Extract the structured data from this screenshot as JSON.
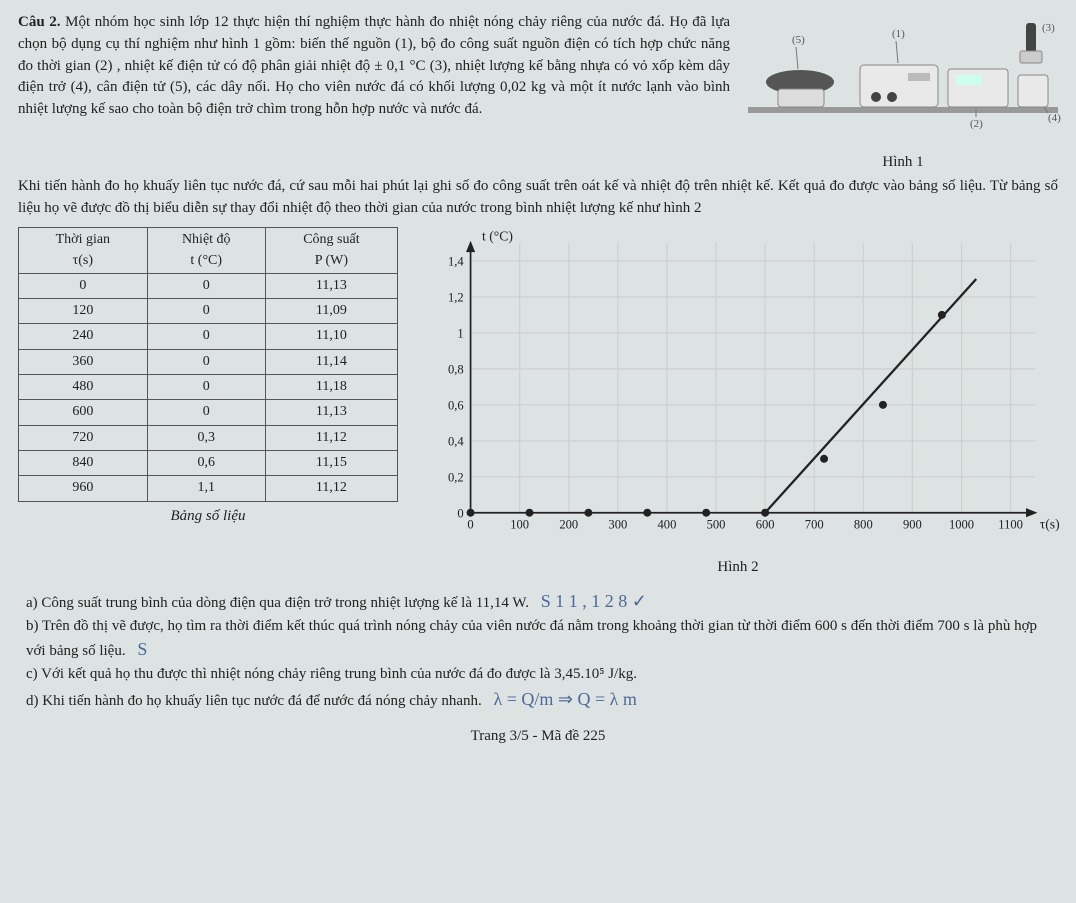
{
  "question_label": "Câu 2.",
  "para1": " Một nhóm học sinh lớp 12 thực hiện thí nghiệm thực hành đo nhiệt nóng chảy riêng của nước đá. Họ đã lựa chọn bộ dụng cụ thí nghiệm như hình 1 gồm: biến thế nguồn (1), bộ đo công suất nguồn điện có tích hợp chức năng đo thời gian (2) , nhiệt kế điện tử có độ phân giải nhiệt độ ± 0,1 °C (3), nhiệt lượng kế bằng nhựa có vỏ xốp kèm dây điện trở (4), cân điện tử (5), các dây nối. Họ cho viên nước đá có khối lượng 0,02 kg và một ít nước lạnh vào bình nhiệt lượng kế sao cho toàn bộ điện trở chìm trong hỗn hợp nước và nước đá.",
  "para2": "Khi tiến hành đo họ khuấy liên tục nước đá, cứ sau mỗi hai phút lại ghi số đo công suất trên oát kế và nhiệt độ trên nhiệt kế. Kết quả đo được vào bảng số liệu. Từ bảng số liệu họ vẽ được đồ thị biểu diễn sự thay đổi nhiệt độ theo thời gian của nước trong bình nhiệt lượng kế như hình 2",
  "apparatus": {
    "labels": {
      "l1": "(1)",
      "l2": "(2)",
      "l3": "(3)",
      "l4": "(4)",
      "l5": "(5)"
    },
    "caption": "Hình 1"
  },
  "table": {
    "headers": {
      "c1": "Thời gian\nτ(s)",
      "c2": "Nhiệt độ\nt (°C)",
      "c3": "Công suất\nP (W)"
    },
    "rows": [
      {
        "c1": "0",
        "c2": "0",
        "c3": "11,13"
      },
      {
        "c1": "120",
        "c2": "0",
        "c3": "11,09"
      },
      {
        "c1": "240",
        "c2": "0",
        "c3": "11,10"
      },
      {
        "c1": "360",
        "c2": "0",
        "c3": "11,14"
      },
      {
        "c1": "480",
        "c2": "0",
        "c3": "11,18"
      },
      {
        "c1": "600",
        "c2": "0",
        "c3": "11,13"
      },
      {
        "c1": "720",
        "c2": "0,3",
        "c3": "11,12"
      },
      {
        "c1": "840",
        "c2": "0,6",
        "c3": "11,15"
      },
      {
        "c1": "960",
        "c2": "1,1",
        "c3": "11,12"
      }
    ],
    "caption": "Bảng số liệu"
  },
  "chart": {
    "type": "scatter-line",
    "ylabel": "t (°C)",
    "xlabel": "τ(s)",
    "xlim": [
      0,
      1150
    ],
    "ylim": [
      0,
      1.5
    ],
    "xticks": [
      0,
      100,
      200,
      300,
      400,
      500,
      600,
      700,
      800,
      900,
      1000,
      1100
    ],
    "yticks": [
      0,
      0.2,
      0.4,
      0.6,
      0.8,
      1,
      1.2,
      1.4
    ],
    "ytick_labels": [
      "0",
      "0,2",
      "0,4",
      "0,6",
      "0,8",
      "1",
      "1,2",
      "1,4"
    ],
    "points": [
      {
        "x": 0,
        "y": 0
      },
      {
        "x": 120,
        "y": 0
      },
      {
        "x": 240,
        "y": 0
      },
      {
        "x": 360,
        "y": 0
      },
      {
        "x": 480,
        "y": 0
      },
      {
        "x": 600,
        "y": 0
      },
      {
        "x": 720,
        "y": 0.3
      },
      {
        "x": 840,
        "y": 0.6
      },
      {
        "x": 960,
        "y": 1.1
      }
    ],
    "line": {
      "x1": 600,
      "y1": 0,
      "x2": 1030,
      "y2": 1.3
    },
    "grid_color": "#cfcfcf",
    "axis_color": "#222",
    "point_color": "#222",
    "line_color": "#222",
    "line_width": 2,
    "point_radius": 3.5,
    "caption": "Hình 2"
  },
  "answers": {
    "a": "a) Công suất trung bình của dòng điện qua điện trở trong nhiệt lượng kế là 11,14 W.",
    "a_scribble": "S   1 1 , 1 2 8  ✓",
    "b": "b) Trên đồ thị vẽ được, họ tìm ra thời điểm kết thúc quá trình nóng chảy của viên nước đá nằm trong khoảng thời gian từ thời điểm 600 s đến thời điểm 700 s là phù hợp với bảng số liệu.",
    "b_scribble": "S",
    "c": "c) Với kết quả họ thu được thì nhiệt nóng chảy riêng trung bình của nước đá đo được là 3,45.10⁵ J/kg.",
    "d": "d) Khi tiến hành đo họ khuấy liên tục nước đá để nước đá nóng chảy nhanh.",
    "d_scribble": "  λ = Q/m   ⇒  Q = λ m"
  },
  "footer": "Trang 3/5 - Mã đề 225"
}
